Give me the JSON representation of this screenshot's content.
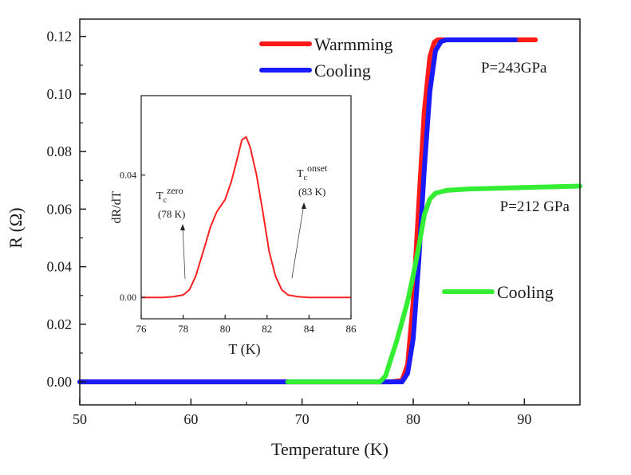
{
  "chart_data": [
    {
      "type": "line",
      "title": "",
      "xlabel": "Temperature (K)",
      "ylabel": "R (Ω)",
      "xlim": [
        50,
        95
      ],
      "ylim": [
        -0.008,
        0.126
      ],
      "xticks": [
        50,
        60,
        70,
        80,
        90
      ],
      "yticks": [
        0.0,
        0.02,
        0.04,
        0.06,
        0.08,
        0.1,
        0.12
      ],
      "ytick_labels": [
        "0.00",
        "0.02",
        "0.04",
        "0.06",
        "0.08",
        "0.10",
        "0.12"
      ],
      "grid": false,
      "legend_placement": "top-center",
      "annotations": [
        {
          "text": "P=243GPa",
          "x": 86.1,
          "y": 0.1075
        },
        {
          "text": "P=212 GPa",
          "x": 87.8,
          "y": 0.0593
        }
      ],
      "series": [
        {
          "name": "Warmming",
          "color": "#ff1a1a",
          "x": [
            50,
            78,
            79,
            79.5,
            80,
            80.5,
            81,
            81.5,
            81.9,
            82.2,
            91
          ],
          "y": [
            0.0,
            0.0,
            0.0005,
            0.006,
            0.028,
            0.062,
            0.094,
            0.113,
            0.118,
            0.1188,
            0.1188
          ]
        },
        {
          "name": "Cooling",
          "color": "#1a1aff",
          "x": [
            50,
            79,
            79.5,
            80,
            80.5,
            81,
            81.5,
            82,
            82.5,
            83,
            89.2
          ],
          "y": [
            0.0,
            0.0,
            0.003,
            0.015,
            0.042,
            0.074,
            0.101,
            0.115,
            0.1182,
            0.1188,
            0.1188
          ]
        },
        {
          "name": "Cooling",
          "color": "#33ee33",
          "x": [
            68.7,
            77,
            77.5,
            78,
            78.5,
            79,
            79.5,
            80,
            80.5,
            81,
            81.5,
            82,
            83,
            85,
            90,
            95
          ],
          "y": [
            0.0,
            0.0,
            0.002,
            0.008,
            0.014,
            0.021,
            0.028,
            0.037,
            0.047,
            0.058,
            0.0635,
            0.0655,
            0.0665,
            0.067,
            0.0675,
            0.068
          ]
        }
      ]
    },
    {
      "type": "line",
      "title": "",
      "xlabel": "T (K)",
      "ylabel": "dR/dT",
      "xlim": [
        76,
        86
      ],
      "ylim": [
        -0.007,
        0.066
      ],
      "xticks": [
        76,
        78,
        80,
        82,
        84,
        86
      ],
      "yticks": [
        0.0,
        0.04
      ],
      "ytick_labels": [
        "0.00",
        "0.04"
      ],
      "grid": false,
      "annotations": [
        {
          "base": "T",
          "sub": "c",
          "sup": "zero",
          "value": "(78 K)",
          "x": 78
        },
        {
          "base": "T",
          "sub": "c",
          "sup": "onset",
          "value": "(83 K)",
          "x": 83
        }
      ],
      "series": [
        {
          "name": "",
          "color": "#ff2020",
          "x": [
            76,
            77,
            77.5,
            78,
            78.3,
            78.6,
            79,
            79.3,
            79.6,
            80,
            80.3,
            80.6,
            80.8,
            81,
            81.2,
            81.5,
            81.8,
            82.1,
            82.4,
            82.7,
            83,
            83.5,
            84,
            86
          ],
          "y": [
            0.0,
            0.0,
            0.0002,
            0.0008,
            0.0025,
            0.007,
            0.016,
            0.023,
            0.028,
            0.032,
            0.038,
            0.046,
            0.0515,
            0.0525,
            0.049,
            0.04,
            0.028,
            0.015,
            0.007,
            0.0025,
            0.0008,
            0.0002,
            0.0,
            0.0
          ]
        }
      ]
    }
  ]
}
